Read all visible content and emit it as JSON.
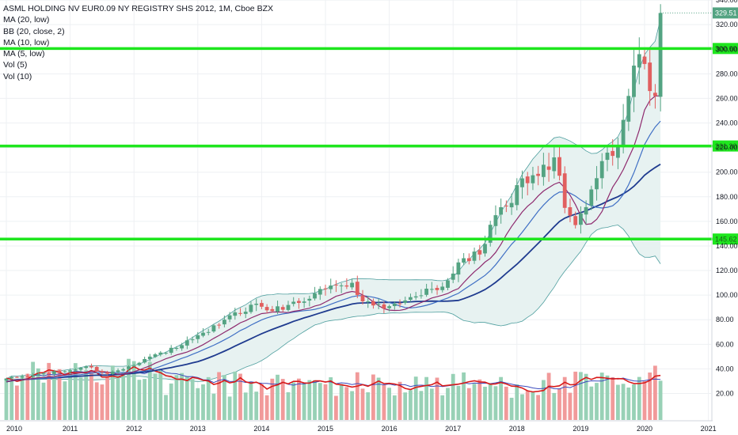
{
  "legend": {
    "symbol": "ASML HOLDING NV EUR0.09 NY REGISTRY SHS 2012, 1M, Cboe BZX",
    "indicators": [
      "MA (20, low)",
      "BB (20, close, 2)",
      "MA (10, low)",
      "MA (5, low)",
      "Vol (5)",
      "Vol (10)"
    ]
  },
  "colors": {
    "up": "#53a382",
    "down": "#e15f5f",
    "vol_up": "#98d1b6",
    "vol_down": "#f19a9a",
    "ma20": "#1f3b8f",
    "ma10": "#3f6fc4",
    "ma5": "#8e2a6e",
    "bb": "#4d9e9e",
    "bb_fill": "#e7f2f1",
    "vol5": "#d81b1b",
    "vol10": "#3b4bbd",
    "hline": "#1ee61e",
    "grid": "#eef0f3"
  },
  "chart_data": {
    "type": "candlestick",
    "title": "ASML HOLDING NV EUR0.09 NY REGISTRY SHS 2012, 1M, Cboe BZX",
    "x_ticks": [
      "2010",
      "2011",
      "2012",
      "2013",
      "2014",
      "2015",
      "2016",
      "2017",
      "2018",
      "2019",
      "2020",
      "2021"
    ],
    "y_ticks": [
      20,
      40,
      60,
      80,
      100,
      120,
      140,
      160,
      180,
      200,
      220,
      240,
      260,
      280,
      300,
      320,
      340
    ],
    "y_range": [
      0,
      345
    ],
    "time_range": [
      "2010-01",
      "2021-01"
    ],
    "last_price": "329.51",
    "last_price_value": 329.51,
    "horizontal_levels": [
      {
        "label": "300.60",
        "value": 300.6
      },
      {
        "label": "221.30",
        "value": 221.3
      },
      {
        "label": "145.62",
        "value": 145.62
      }
    ],
    "anchors": [
      {
        "t": "2010-01",
        "price": 32
      },
      {
        "t": "2010-06",
        "price": 35
      },
      {
        "t": "2010-12",
        "price": 38
      },
      {
        "t": "2011-04",
        "price": 42
      },
      {
        "t": "2011-08",
        "price": 36
      },
      {
        "t": "2011-12",
        "price": 42
      },
      {
        "t": "2012-04",
        "price": 50
      },
      {
        "t": "2012-09",
        "price": 57
      },
      {
        "t": "2012-12",
        "price": 64
      },
      {
        "t": "2013-03",
        "price": 70
      },
      {
        "t": "2013-06",
        "price": 80
      },
      {
        "t": "2013-12",
        "price": 93
      },
      {
        "t": "2014-03",
        "price": 87
      },
      {
        "t": "2014-06",
        "price": 92
      },
      {
        "t": "2014-10",
        "price": 97
      },
      {
        "t": "2014-12",
        "price": 105
      },
      {
        "t": "2015-03",
        "price": 108
      },
      {
        "t": "2015-06",
        "price": 110
      },
      {
        "t": "2015-08",
        "price": 95
      },
      {
        "t": "2015-12",
        "price": 89
      },
      {
        "t": "2016-03",
        "price": 93
      },
      {
        "t": "2016-06",
        "price": 99
      },
      {
        "t": "2016-09",
        "price": 105
      },
      {
        "t": "2016-12",
        "price": 112
      },
      {
        "t": "2017-03",
        "price": 130
      },
      {
        "t": "2017-06",
        "price": 133
      },
      {
        "t": "2017-09",
        "price": 165
      },
      {
        "t": "2017-12",
        "price": 175
      },
      {
        "t": "2018-02",
        "price": 195
      },
      {
        "t": "2018-05",
        "price": 197
      },
      {
        "t": "2018-08",
        "price": 212
      },
      {
        "t": "2018-10",
        "price": 171
      },
      {
        "t": "2018-12",
        "price": 157
      },
      {
        "t": "2019-03",
        "price": 186
      },
      {
        "t": "2019-05",
        "price": 209
      },
      {
        "t": "2019-08",
        "price": 221
      },
      {
        "t": "2019-10",
        "price": 262
      },
      {
        "t": "2019-12",
        "price": 296
      },
      {
        "t": "2020-01",
        "price": 288
      },
      {
        "t": "2020-02",
        "price": 266
      },
      {
        "t": "2020-03",
        "price": 262
      },
      {
        "t": "2020-04",
        "price": 329.51
      }
    ]
  }
}
